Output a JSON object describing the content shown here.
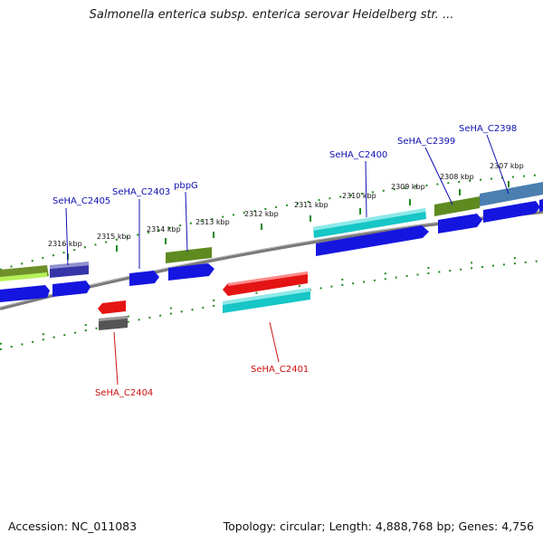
{
  "title": "Salmonella enterica subsp. enterica serovar Heidelberg str. ...",
  "footer": {
    "accession": "Accession: NC_011083",
    "summary": "Topology: circular; Length: 4,888,768 bp; Genes: 4,756"
  },
  "colors": {
    "background": "#ffffff",
    "backbone": "#888888",
    "tick": "#1e8a1e",
    "label_forward": "#1010b0",
    "label_reverse": "#cc1111",
    "gene_blue": "#1515e0",
    "gene_green": "#5e8a20",
    "gene_teal": "#17c6c6",
    "gene_red": "#e41414",
    "gene_gray": "#555555"
  },
  "scale_labels": [
    "2316 kbp",
    "2315 kbp",
    "2314 kbp",
    "2313 kbp",
    "2312 kbp",
    "2311 kbp",
    "2310 kbp",
    "2309 kbp",
    "2308 kbp",
    "2307 kbp"
  ],
  "gene_labels": [
    {
      "text": "SeHA_C2405",
      "strand": "forward"
    },
    {
      "text": "SeHA_C2403",
      "strand": "forward"
    },
    {
      "text": "pbpG",
      "strand": "forward"
    },
    {
      "text": "SeHA_C2400",
      "strand": "forward"
    },
    {
      "text": "SeHA_C2399",
      "strand": "forward"
    },
    {
      "text": "SeHA_C2398",
      "strand": "forward"
    },
    {
      "text": "SeHA_C2401",
      "strand": "reverse"
    },
    {
      "text": "SeHA_C2404",
      "strand": "reverse"
    }
  ]
}
